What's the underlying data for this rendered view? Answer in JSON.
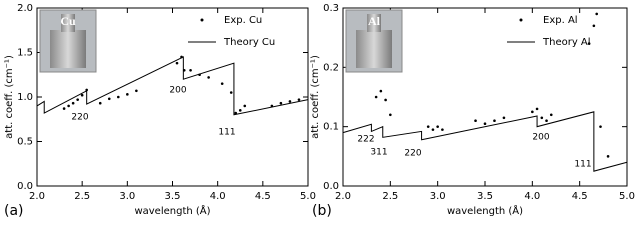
{
  "chart_data": [
    {
      "type": "line",
      "panel_label": "(a)",
      "inset_label": "Cu",
      "x_label": "wavelength (Å)",
      "y_label": "att. coeff. (cm⁻¹)",
      "xlim": [
        2.0,
        5.0
      ],
      "ylim": [
        0.0,
        2.0
      ],
      "xticks": [
        {
          "value": 2,
          "label": "2.0"
        },
        {
          "value": 2.5,
          "label": "2.5"
        },
        {
          "value": 3,
          "label": "3.0"
        },
        {
          "value": 3.5,
          "label": "3.5"
        },
        {
          "value": 4,
          "label": "4.0"
        },
        {
          "value": 4.5,
          "label": "4.5"
        },
        {
          "value": 5,
          "label": "5.0"
        }
      ],
      "yticks": [
        {
          "value": 0,
          "label": "0.0"
        },
        0.5,
        {
          "value": 1,
          "label": "1.0"
        },
        1.5,
        {
          "value": 2,
          "label": "2.0"
        }
      ],
      "annotations": [
        "220",
        "200",
        "111"
      ],
      "series": [
        {
          "name": "Exp. Cu",
          "style": "dots",
          "color": "#000000",
          "x": [
            2.3,
            2.35,
            2.4,
            2.45,
            2.5,
            2.55,
            2.7,
            2.8,
            2.9,
            3.0,
            3.1,
            3.55,
            3.6,
            3.63,
            3.7,
            3.8,
            3.9,
            4.05,
            4.15,
            4.2,
            4.25,
            4.3,
            4.6,
            4.7,
            4.8,
            4.9
          ],
          "values": [
            0.87,
            0.9,
            0.93,
            0.97,
            1.02,
            1.08,
            0.93,
            0.98,
            1.0,
            1.03,
            1.07,
            1.38,
            1.45,
            1.3,
            1.3,
            1.25,
            1.22,
            1.15,
            1.05,
            0.82,
            0.85,
            0.9,
            0.9,
            0.93,
            0.95,
            0.97
          ]
        },
        {
          "name": "Theory Cu",
          "style": "line",
          "color": "#000000",
          "x": [
            2.0,
            2.08,
            2.08,
            2.55,
            2.55,
            3.62,
            3.62,
            4.18,
            4.18,
            5.0
          ],
          "values": [
            0.9,
            0.95,
            0.82,
            1.07,
            0.92,
            1.45,
            1.2,
            1.38,
            0.8,
            0.97
          ]
        }
      ]
    },
    {
      "type": "line",
      "panel_label": "(b)",
      "inset_label": "Al",
      "x_label": "wavelength (Å)",
      "y_label": "att. coeff. (cm⁻¹)",
      "xlim": [
        2.0,
        5.0
      ],
      "ylim": [
        0.0,
        0.3
      ],
      "xticks": [
        {
          "value": 2,
          "label": "2.0"
        },
        {
          "value": 2.5,
          "label": "2.5"
        },
        {
          "value": 3,
          "label": "3.0"
        },
        {
          "value": 3.5,
          "label": "3.5"
        },
        {
          "value": 4,
          "label": "4.0"
        },
        {
          "value": 4.5,
          "label": "4.5"
        },
        {
          "value": 5,
          "label": "5.0"
        }
      ],
      "yticks": [
        {
          "value": 0,
          "label": "0.0"
        },
        0.1,
        0.2,
        0.3
      ],
      "annotations": [
        "222",
        "311",
        "220",
        "200",
        "111"
      ],
      "series": [
        {
          "name": "Exp. Al",
          "style": "dots",
          "color": "#000000",
          "x": [
            2.35,
            2.4,
            2.45,
            2.5,
            2.9,
            2.95,
            3.0,
            3.05,
            3.4,
            3.5,
            3.6,
            3.7,
            4.0,
            4.05,
            4.1,
            4.15,
            4.2,
            4.6,
            4.65,
            4.68,
            4.72,
            4.8
          ],
          "values": [
            0.15,
            0.16,
            0.145,
            0.12,
            0.1,
            0.095,
            0.1,
            0.095,
            0.11,
            0.105,
            0.11,
            0.115,
            0.125,
            0.13,
            0.115,
            0.11,
            0.12,
            0.24,
            0.27,
            0.29,
            0.1,
            0.05
          ]
        },
        {
          "name": "Theory Al",
          "style": "line",
          "color": "#000000",
          "x": [
            2.0,
            2.3,
            2.3,
            2.42,
            2.42,
            2.83,
            2.83,
            4.05,
            4.05,
            4.65,
            4.65,
            5.0
          ],
          "values": [
            0.09,
            0.104,
            0.092,
            0.1,
            0.082,
            0.092,
            0.078,
            0.118,
            0.1,
            0.125,
            0.025,
            0.04
          ]
        }
      ]
    }
  ]
}
